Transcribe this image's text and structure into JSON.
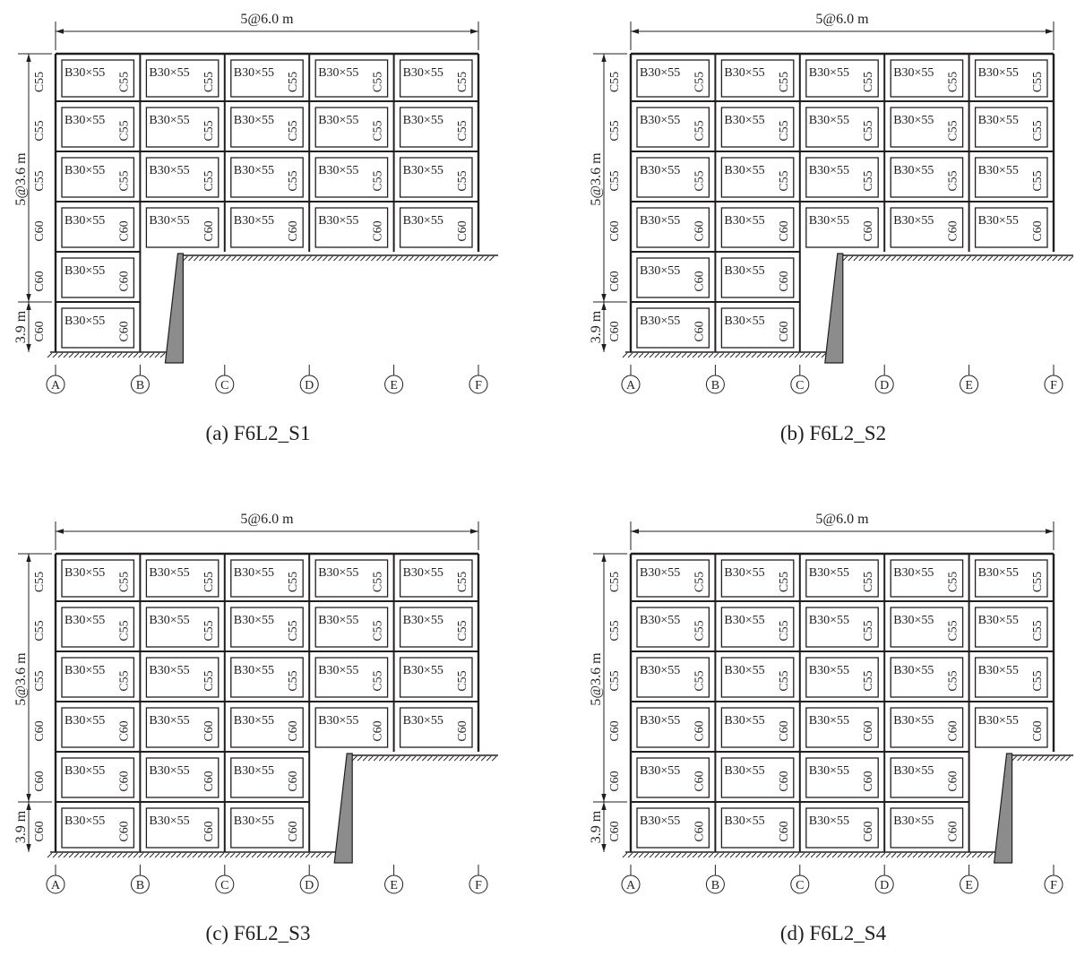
{
  "colors": {
    "ink": "#231f20",
    "retaining_wall": "#8c8c8c",
    "background": "#ffffff"
  },
  "dims": {
    "span": "5@6.0 m",
    "upper_storeys": "5@3.6 m",
    "ground_storey": "3.9 m"
  },
  "beam_label": "B30×55",
  "column_labels": [
    "C60",
    "C60",
    "C60",
    "C55",
    "C55",
    "C55"
  ],
  "axes": [
    "A",
    "B",
    "C",
    "D",
    "E",
    "F"
  ],
  "panels": [
    {
      "id": "a",
      "caption": "(a) F6L2_S1",
      "wall_after_bay": 1
    },
    {
      "id": "b",
      "caption": "(b) F6L2_S2",
      "wall_after_bay": 2
    },
    {
      "id": "c",
      "caption": "(c) F6L2_S3",
      "wall_after_bay": 3
    },
    {
      "id": "d",
      "caption": "(d) F6L2_S4",
      "wall_after_bay": 4
    }
  ]
}
